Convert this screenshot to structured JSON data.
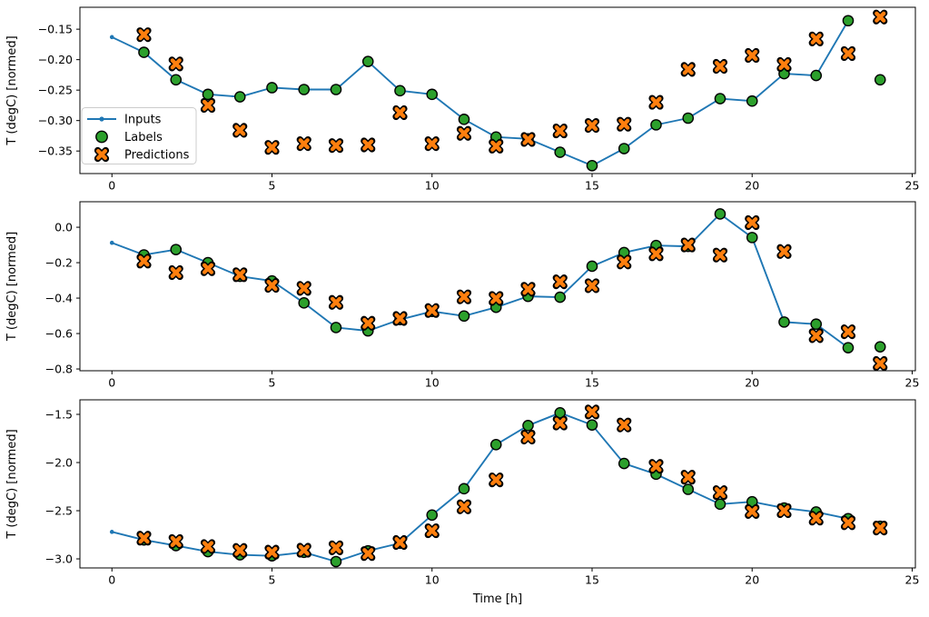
{
  "figure": {
    "xlabel": "Time [h]",
    "ylabel": "T (degC) [normed]",
    "x_ticks": [
      0,
      5,
      10,
      15,
      20,
      25
    ],
    "legend": {
      "items": [
        "Inputs",
        "Labels",
        "Predictions"
      ],
      "position": "center-left-of-first-subplot"
    },
    "colors": {
      "inputs": "#1f77b4",
      "labels": "#2ca02c",
      "predictions": "#ff7f0e",
      "marker_edge": "#000000",
      "axis": "#000000",
      "legend_border": "#cccccc",
      "background": "#ffffff"
    },
    "grid": false
  },
  "chart_data": [
    {
      "type": "line",
      "subplot": 1,
      "title": "",
      "xlabel": "",
      "ylabel": "T (degC) [normed]",
      "xlim": [
        -1.0,
        25.1
      ],
      "ylim": [
        -0.387,
        -0.114
      ],
      "y_ticks": [
        -0.15,
        -0.2,
        -0.25,
        -0.3,
        -0.35
      ],
      "tick_decimals": 2,
      "legend": true,
      "series": [
        {
          "name": "Inputs",
          "style": "line-dot",
          "x": [
            0,
            1,
            2,
            3,
            4,
            5,
            6,
            7,
            8,
            9,
            10,
            11,
            12,
            13,
            14,
            15,
            16,
            17,
            18,
            19,
            20,
            21,
            22,
            23
          ],
          "values": [
            -0.163,
            -0.188,
            -0.233,
            -0.257,
            -0.261,
            -0.246,
            -0.249,
            -0.249,
            -0.203,
            -0.251,
            -0.257,
            -0.298,
            -0.327,
            -0.33,
            -0.352,
            -0.374,
            -0.346,
            -0.307,
            -0.296,
            -0.264,
            -0.268,
            -0.223,
            -0.226,
            -0.136
          ]
        },
        {
          "name": "Labels",
          "style": "circle",
          "x": [
            1,
            2,
            3,
            4,
            5,
            6,
            7,
            8,
            9,
            10,
            11,
            12,
            13,
            14,
            15,
            16,
            17,
            18,
            19,
            20,
            21,
            22,
            23,
            24
          ],
          "values": [
            -0.188,
            -0.233,
            -0.257,
            -0.261,
            -0.246,
            -0.249,
            -0.249,
            -0.203,
            -0.251,
            -0.257,
            -0.298,
            -0.327,
            -0.33,
            -0.352,
            -0.374,
            -0.346,
            -0.307,
            -0.296,
            -0.264,
            -0.268,
            -0.223,
            -0.226,
            -0.136,
            -0.233
          ]
        },
        {
          "name": "Predictions",
          "style": "x",
          "x": [
            1,
            2,
            3,
            4,
            5,
            6,
            7,
            8,
            9,
            10,
            11,
            12,
            13,
            14,
            15,
            16,
            17,
            18,
            19,
            20,
            21,
            22,
            23,
            24
          ],
          "values": [
            -0.159,
            -0.207,
            -0.275,
            -0.316,
            -0.344,
            -0.338,
            -0.341,
            -0.34,
            -0.287,
            -0.338,
            -0.321,
            -0.342,
            -0.331,
            -0.317,
            -0.308,
            -0.306,
            -0.27,
            -0.216,
            -0.211,
            -0.193,
            -0.208,
            -0.166,
            -0.19,
            -0.13
          ]
        }
      ]
    },
    {
      "type": "line",
      "subplot": 2,
      "title": "",
      "xlabel": "",
      "ylabel": "T (degC) [normed]",
      "xlim": [
        -1.0,
        25.1
      ],
      "ylim": [
        -0.81,
        0.144
      ],
      "y_ticks": [
        0.0,
        -0.2,
        -0.4,
        -0.6,
        -0.8
      ],
      "tick_decimals": 1,
      "legend": false,
      "series": [
        {
          "name": "Inputs",
          "style": "line-dot",
          "x": [
            0,
            1,
            2,
            3,
            4,
            5,
            6,
            7,
            8,
            9,
            10,
            11,
            12,
            13,
            14,
            15,
            16,
            17,
            18,
            19,
            20,
            21,
            22,
            23
          ],
          "values": [
            -0.088,
            -0.156,
            -0.126,
            -0.2,
            -0.277,
            -0.303,
            -0.427,
            -0.566,
            -0.585,
            -0.521,
            -0.475,
            -0.501,
            -0.452,
            -0.39,
            -0.395,
            -0.22,
            -0.143,
            -0.103,
            -0.108,
            0.075,
            -0.058,
            -0.535,
            -0.547,
            -0.68
          ]
        },
        {
          "name": "Labels",
          "style": "circle",
          "x": [
            1,
            2,
            3,
            4,
            5,
            6,
            7,
            8,
            9,
            10,
            11,
            12,
            13,
            14,
            15,
            16,
            17,
            18,
            19,
            20,
            21,
            22,
            23,
            24
          ],
          "values": [
            -0.156,
            -0.126,
            -0.2,
            -0.277,
            -0.303,
            -0.427,
            -0.566,
            -0.585,
            -0.521,
            -0.475,
            -0.501,
            -0.452,
            -0.39,
            -0.395,
            -0.22,
            -0.143,
            -0.103,
            -0.108,
            0.075,
            -0.058,
            -0.535,
            -0.547,
            -0.68,
            -0.675
          ]
        },
        {
          "name": "Predictions",
          "style": "x",
          "x": [
            1,
            2,
            3,
            4,
            5,
            6,
            7,
            8,
            9,
            10,
            11,
            12,
            13,
            14,
            15,
            16,
            17,
            18,
            19,
            20,
            21,
            22,
            23,
            24
          ],
          "values": [
            -0.191,
            -0.256,
            -0.234,
            -0.268,
            -0.328,
            -0.345,
            -0.424,
            -0.542,
            -0.515,
            -0.47,
            -0.393,
            -0.402,
            -0.35,
            -0.308,
            -0.33,
            -0.196,
            -0.15,
            -0.1,
            -0.157,
            0.026,
            -0.137,
            -0.612,
            -0.59,
            -0.769
          ]
        }
      ]
    },
    {
      "type": "line",
      "subplot": 3,
      "title": "",
      "xlabel": "Time [h]",
      "ylabel": "T (degC) [normed]",
      "xlim": [
        -1.0,
        25.1
      ],
      "ylim": [
        -3.094,
        -1.349
      ],
      "y_ticks": [
        -1.5,
        -2.0,
        -2.5,
        -3.0
      ],
      "tick_decimals": 1,
      "legend": false,
      "series": [
        {
          "name": "Inputs",
          "style": "line-dot",
          "x": [
            0,
            1,
            2,
            3,
            4,
            5,
            6,
            7,
            8,
            9,
            10,
            11,
            12,
            13,
            14,
            15,
            16,
            17,
            18,
            19,
            20,
            21,
            22,
            23
          ],
          "values": [
            -2.72,
            -2.803,
            -2.862,
            -2.925,
            -2.958,
            -2.968,
            -2.932,
            -3.028,
            -2.917,
            -2.837,
            -2.545,
            -2.272,
            -1.814,
            -1.616,
            -1.484,
            -1.61,
            -2.01,
            -2.121,
            -2.278,
            -2.432,
            -2.407,
            -2.472,
            -2.513,
            -2.583
          ]
        },
        {
          "name": "Labels",
          "style": "circle",
          "x": [
            1,
            2,
            3,
            4,
            5,
            6,
            7,
            8,
            9,
            10,
            11,
            12,
            13,
            14,
            15,
            16,
            17,
            18,
            19,
            20,
            21,
            22,
            23,
            24
          ],
          "values": [
            -2.803,
            -2.862,
            -2.925,
            -2.958,
            -2.968,
            -2.932,
            -3.028,
            -2.917,
            -2.837,
            -2.545,
            -2.272,
            -1.814,
            -1.616,
            -1.484,
            -1.61,
            -2.01,
            -2.121,
            -2.278,
            -2.432,
            -2.407,
            -2.472,
            -2.513,
            -2.583,
            -2.662
          ]
        },
        {
          "name": "Predictions",
          "style": "x",
          "x": [
            1,
            2,
            3,
            4,
            5,
            6,
            7,
            8,
            9,
            10,
            11,
            12,
            13,
            14,
            15,
            16,
            17,
            18,
            19,
            20,
            21,
            22,
            23,
            24
          ],
          "values": [
            -2.785,
            -2.82,
            -2.872,
            -2.912,
            -2.93,
            -2.91,
            -2.885,
            -2.945,
            -2.83,
            -2.708,
            -2.46,
            -2.18,
            -1.736,
            -1.59,
            -1.475,
            -1.61,
            -2.04,
            -2.152,
            -2.312,
            -2.508,
            -2.5,
            -2.577,
            -2.625,
            -2.68
          ]
        }
      ]
    }
  ]
}
